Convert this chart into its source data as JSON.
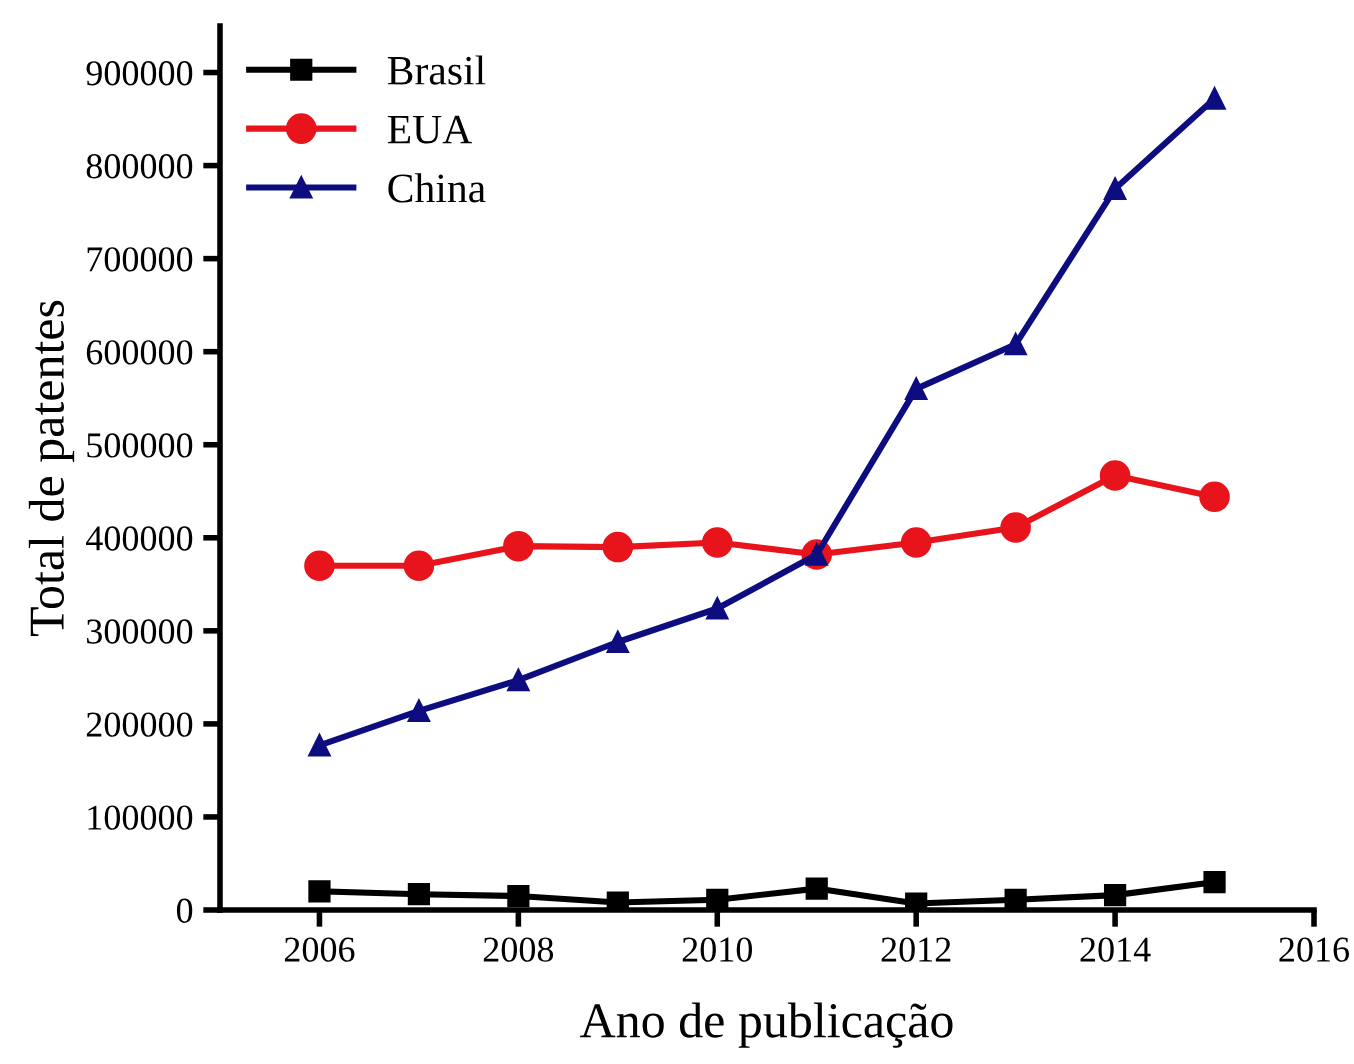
{
  "chart_data": {
    "type": "line",
    "xlabel": "Ano de publicação",
    "ylabel": "Total de patentes",
    "x": [
      2006,
      2007,
      2008,
      2009,
      2010,
      2011,
      2012,
      2013,
      2014,
      2015
    ],
    "series": [
      {
        "name": "Brasil",
        "color": "#000000",
        "marker": "square",
        "values": [
          20000,
          17000,
          15000,
          8000,
          11000,
          23000,
          7000,
          11000,
          16000,
          30000
        ]
      },
      {
        "name": "EUA",
        "color": "#e8141c",
        "marker": "circle",
        "values": [
          370000,
          370000,
          391000,
          390000,
          395000,
          382000,
          395000,
          411000,
          467000,
          444000
        ]
      },
      {
        "name": "China",
        "color": "#0d0d80",
        "marker": "triangle",
        "values": [
          177000,
          214000,
          247000,
          288000,
          324000,
          382000,
          560000,
          608000,
          775000,
          872000
        ]
      }
    ],
    "xlim": [
      2005,
      2016
    ],
    "xticks": [
      2006,
      2008,
      2010,
      2012,
      2014,
      2016
    ],
    "ylim": [
      0,
      950000
    ],
    "yticks": [
      0,
      100000,
      200000,
      300000,
      400000,
      500000,
      600000,
      700000,
      800000,
      900000
    ],
    "grid": false,
    "legend": "top left",
    "line_style": "solid"
  }
}
